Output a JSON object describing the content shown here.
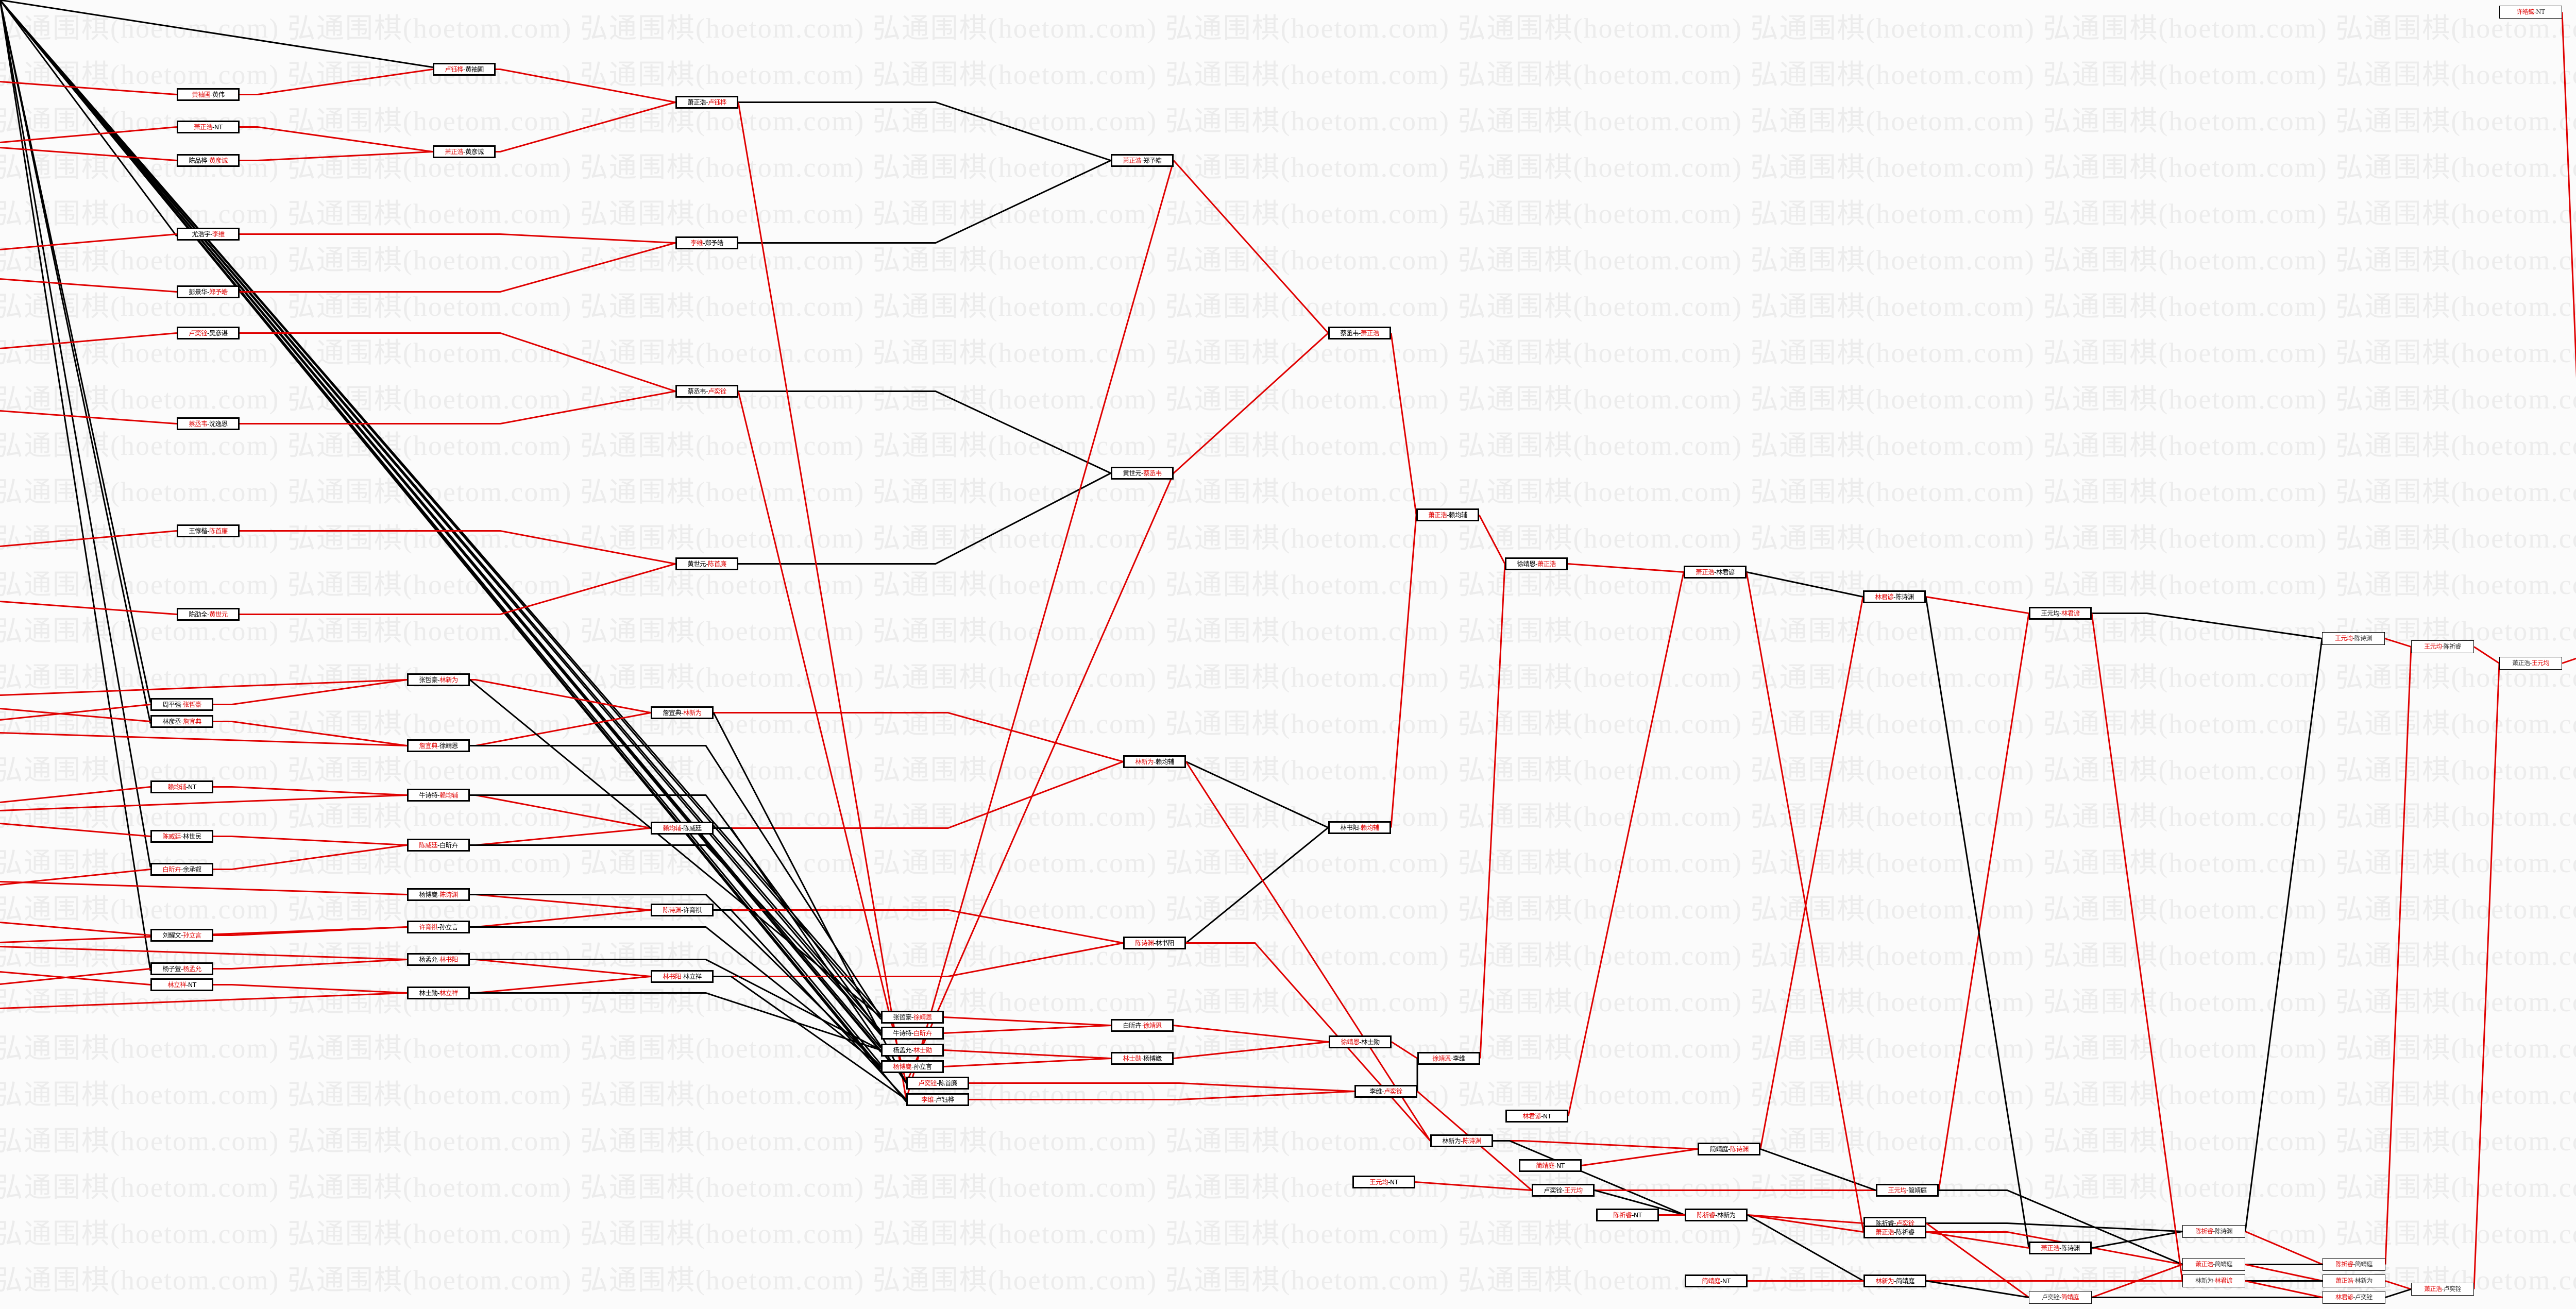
{
  "watermark": "弘通围棋(hoetom.com)",
  "colors": {
    "winner": "#e00000",
    "edge_red": "#e00000",
    "edge_black": "#000000",
    "background": "#fbfbfb"
  },
  "matches": [
    {
      "p1": "黄袖圃",
      "p2": "黄伟",
      "winner": 1
    },
    {
      "p1": "萧正浩",
      "p2": "NT",
      "winner": 1
    },
    {
      "p1": "陈品桦",
      "p2": "黄彦诚",
      "winner": 2
    },
    {
      "p1": "尤浩宇",
      "p2": "李维",
      "winner": 2
    },
    {
      "p1": "彭景华",
      "p2": "郑予皓",
      "winner": 2
    },
    {
      "p1": "卢奕铨",
      "p2": "吴彦谌",
      "winner": 1
    },
    {
      "p1": "蔡丞韦",
      "p2": "沈逸恩",
      "winner": 1
    },
    {
      "p1": "王惇楷",
      "p2": "陈首廉",
      "winner": 2
    },
    {
      "p1": "陈劭全",
      "p2": "黄世元",
      "winner": 2
    },
    {
      "p1": "卢钰桦",
      "p2": "黄袖圃",
      "winner": 1
    },
    {
      "p1": "萧正浩",
      "p2": "黄彦诚",
      "winner": 1
    },
    {
      "p1": "萧正浩",
      "p2": "卢钰桦",
      "winner": 2
    },
    {
      "p1": "李维",
      "p2": "郑予皓",
      "winner": 1
    },
    {
      "p1": "蔡丞韦",
      "p2": "卢奕铨",
      "winner": 2
    },
    {
      "p1": "黄世元",
      "p2": "陈首廉",
      "winner": 2
    },
    {
      "p1": "萧正浩",
      "p2": "郑予皓",
      "winner": 1
    },
    {
      "p1": "黄世元",
      "p2": "蔡丞韦",
      "winner": 2
    },
    {
      "p1": "蔡丞韦",
      "p2": "萧正浩",
      "winner": 2
    },
    {
      "p1": "萧正浩",
      "p2": "赖均辅",
      "winner": 1
    },
    {
      "p1": "徐靖恩",
      "p2": "萧正浩",
      "winner": 2
    },
    {
      "p1": "萧正浩",
      "p2": "林君谚",
      "winner": 1
    },
    {
      "p1": "林君谚",
      "p2": "陈诗渊",
      "winner": 1
    },
    {
      "p1": "王元均",
      "p2": "林君谚",
      "winner": 2
    },
    {
      "p1": "王元均",
      "p2": "陈诗渊",
      "winner": 1
    },
    {
      "p1": "王元均",
      "p2": "陈祈睿",
      "winner": 1
    },
    {
      "p1": "萧正浩",
      "p2": "王元均",
      "winner": 2
    },
    {
      "p1": "王元均",
      "p2": "许皓鋐",
      "winner": 2
    },
    {
      "p1": "许皓鋐",
      "p2": "NT",
      "winner": 1
    },
    {
      "p1": "周平强",
      "p2": "张哲豪",
      "winner": 2
    },
    {
      "p1": "林彦丞",
      "p2": "詹宜典",
      "winner": 2
    },
    {
      "p1": "赖均辅",
      "p2": "NT",
      "winner": 1
    },
    {
      "p1": "陈威廷",
      "p2": "林世民",
      "winner": 1
    },
    {
      "p1": "白昕卉",
      "p2": "余承叡",
      "winner": 1
    },
    {
      "p1": "刘耀文",
      "p2": "孙立言",
      "winner": 2
    },
    {
      "p1": "杨子萱",
      "p2": "杨孟允",
      "winner": 2
    },
    {
      "p1": "林立祥",
      "p2": "NT",
      "winner": 1
    },
    {
      "p1": "张哲豪",
      "p2": "林新为",
      "winner": 2
    },
    {
      "p1": "詹宜典",
      "p2": "徐靖恩",
      "winner": 1
    },
    {
      "p1": "牛诗特",
      "p2": "赖均辅",
      "winner": 2
    },
    {
      "p1": "陈威廷",
      "p2": "白昕卉",
      "winner": 1
    },
    {
      "p1": "杨博崴",
      "p2": "陈诗渊",
      "winner": 2
    },
    {
      "p1": "许育祺",
      "p2": "孙立言",
      "winner": 1
    },
    {
      "p1": "杨孟允",
      "p2": "林书阳",
      "winner": 2
    },
    {
      "p1": "林士勋",
      "p2": "林立祥",
      "winner": 2
    },
    {
      "p1": "詹宜典",
      "p2": "林新为",
      "winner": 2
    },
    {
      "p1": "赖均辅",
      "p2": "陈威廷",
      "winner": 1
    },
    {
      "p1": "陈诗渊",
      "p2": "许育祺",
      "winner": 1
    },
    {
      "p1": "林书阳",
      "p2": "林立祥",
      "winner": 1
    },
    {
      "p1": "林新为",
      "p2": "赖均辅",
      "winner": 1
    },
    {
      "p1": "陈诗渊",
      "p2": "林书阳",
      "winner": 1
    },
    {
      "p1": "林书阳",
      "p2": "赖均辅",
      "winner": 2
    },
    {
      "p1": "张哲豪",
      "p2": "徐靖恩",
      "winner": 2
    },
    {
      "p1": "牛诗特",
      "p2": "白昕卉",
      "winner": 2
    },
    {
      "p1": "杨孟允",
      "p2": "林士勋",
      "winner": 2
    },
    {
      "p1": "杨博崴",
      "p2": "孙立言",
      "winner": 1
    },
    {
      "p1": "卢奕铨",
      "p2": "陈首廉",
      "winner": 1
    },
    {
      "p1": "李维",
      "p2": "卢钰桦",
      "winner": 1
    },
    {
      "p1": "白昕卉",
      "p2": "徐靖恩",
      "winner": 2
    },
    {
      "p1": "林士勋",
      "p2": "杨博崴",
      "winner": 1
    },
    {
      "p1": "徐靖恩",
      "p2": "林士勋",
      "winner": 1
    },
    {
      "p1": "徐靖恩",
      "p2": "李维",
      "winner": 1
    },
    {
      "p1": "李维",
      "p2": "卢奕铨",
      "winner": 2
    },
    {
      "p1": "林君谚",
      "p2": "NT",
      "winner": 1
    },
    {
      "p1": "林新为",
      "p2": "陈诗渊",
      "winner": 2
    },
    {
      "p1": "简靖庭",
      "p2": "NT",
      "winner": 1
    },
    {
      "p1": "简靖庭",
      "p2": "陈诗渊",
      "winner": 2
    },
    {
      "p1": "王元均",
      "p2": "NT",
      "winner": 1
    },
    {
      "p1": "卢奕铨",
      "p2": "王元均",
      "winner": 2
    },
    {
      "p1": "陈祈睿",
      "p2": "NT",
      "winner": 1
    },
    {
      "p1": "陈祈睿",
      "p2": "林新为",
      "winner": 1
    },
    {
      "p1": "王元均",
      "p2": "简靖庭",
      "winner": 1
    },
    {
      "p1": "陈祈睿",
      "p2": "卢奕铨",
      "winner": 2
    },
    {
      "p1": "萧正浩",
      "p2": "陈祈睿",
      "winner": 1
    },
    {
      "p1": "简靖庭",
      "p2": "NT",
      "winner": 1
    },
    {
      "p1": "林新为",
      "p2": "简靖庭",
      "winner": 1
    },
    {
      "p1": "萧正浩",
      "p2": "陈诗渊",
      "winner": 1
    },
    {
      "p1": "卢奕铨",
      "p2": "简靖庭",
      "winner": 2
    },
    {
      "p1": "陈祈睿",
      "p2": "陈诗渊",
      "winner": 1
    },
    {
      "p1": "萧正浩",
      "p2": "简靖庭",
      "winner": 1
    },
    {
      "p1": "林新为",
      "p2": "林君谚",
      "winner": 2
    },
    {
      "p1": "陈祈睿",
      "p2": "简靖庭",
      "winner": 1
    },
    {
      "p1": "萧正浩",
      "p2": "林新为",
      "winner": 1
    },
    {
      "p1": "林君谚",
      "p2": "卢奕铨",
      "winner": 1
    },
    {
      "p1": "萧正浩",
      "p2": "卢奕铨",
      "winner": 1
    }
  ],
  "edges": [
    [
      0,
      9,
      "r"
    ],
    [
      1,
      10,
      "r"
    ],
    [
      2,
      10,
      "r"
    ],
    [
      3,
      12,
      "r"
    ],
    [
      4,
      12,
      "r"
    ],
    [
      5,
      13,
      "r"
    ],
    [
      6,
      13,
      "r"
    ],
    [
      7,
      14,
      "r"
    ],
    [
      8,
      14,
      "r"
    ],
    [
      9,
      11,
      "r"
    ],
    [
      10,
      11,
      "r"
    ],
    [
      11,
      15,
      "k"
    ],
    [
      12,
      15,
      "k"
    ],
    [
      13,
      16,
      "k"
    ],
    [
      14,
      16,
      "k"
    ],
    [
      15,
      17,
      "r"
    ],
    [
      16,
      17,
      "r"
    ],
    [
      17,
      18,
      "r"
    ],
    [
      11,
      56,
      "r"
    ],
    [
      15,
      56,
      "r"
    ],
    [
      13,
      55,
      "r"
    ],
    [
      16,
      55,
      "r"
    ],
    [
      18,
      19,
      "r"
    ],
    [
      48,
      50,
      "k"
    ],
    [
      49,
      50,
      "k"
    ],
    [
      50,
      18,
      "r"
    ],
    [
      36,
      44,
      "r"
    ],
    [
      37,
      44,
      "r"
    ],
    [
      38,
      45,
      "r"
    ],
    [
      39,
      45,
      "r"
    ],
    [
      40,
      46,
      "r"
    ],
    [
      41,
      46,
      "r"
    ],
    [
      42,
      47,
      "r"
    ],
    [
      43,
      47,
      "r"
    ],
    [
      44,
      48,
      "r"
    ],
    [
      45,
      48,
      "r"
    ],
    [
      46,
      49,
      "r"
    ],
    [
      47,
      49,
      "r"
    ],
    [
      28,
      36,
      "r"
    ],
    [
      29,
      37,
      "r"
    ],
    [
      30,
      38,
      "r"
    ],
    [
      31,
      39,
      "r"
    ],
    [
      32,
      39,
      "r"
    ],
    [
      33,
      41,
      "r"
    ],
    [
      34,
      42,
      "r"
    ],
    [
      35,
      43,
      "r"
    ],
    [
      36,
      51,
      "k"
    ],
    [
      37,
      51,
      "k"
    ],
    [
      38,
      52,
      "k"
    ],
    [
      39,
      52,
      "k"
    ],
    [
      40,
      54,
      "k"
    ],
    [
      41,
      54,
      "k"
    ],
    [
      42,
      53,
      "k"
    ],
    [
      43,
      53,
      "k"
    ],
    [
      44,
      55,
      "k"
    ],
    [
      45,
      55,
      "k"
    ],
    [
      46,
      56,
      "k"
    ],
    [
      47,
      56,
      "k"
    ],
    [
      51,
      57,
      "r"
    ],
    [
      52,
      57,
      "r"
    ],
    [
      53,
      58,
      "r"
    ],
    [
      54,
      58,
      "r"
    ],
    [
      57,
      59,
      "r"
    ],
    [
      58,
      59,
      "r"
    ],
    [
      55,
      61,
      "r"
    ],
    [
      56,
      61,
      "r"
    ],
    [
      59,
      60,
      "r"
    ],
    [
      61,
      60,
      "k"
    ],
    [
      60,
      19,
      "r"
    ],
    [
      48,
      63,
      "r"
    ],
    [
      49,
      63,
      "r"
    ],
    [
      19,
      20,
      "r"
    ],
    [
      62,
      20,
      "r"
    ],
    [
      20,
      21,
      "k"
    ],
    [
      65,
      21,
      "r"
    ],
    [
      21,
      22,
      "r"
    ],
    [
      70,
      22,
      "r"
    ],
    [
      22,
      23,
      "k"
    ],
    [
      23,
      24,
      "r"
    ],
    [
      80,
      24,
      "r"
    ],
    [
      24,
      25,
      "r"
    ],
    [
      83,
      25,
      "r"
    ],
    [
      25,
      26,
      "r"
    ],
    [
      27,
      26,
      "r"
    ],
    [
      63,
      65,
      "r"
    ],
    [
      64,
      65,
      "r"
    ],
    [
      63,
      69,
      "k"
    ],
    [
      66,
      67,
      "r"
    ],
    [
      61,
      67,
      "r"
    ],
    [
      67,
      70,
      "r"
    ],
    [
      67,
      69,
      "k"
    ],
    [
      68,
      69,
      "r"
    ],
    [
      65,
      70,
      "k"
    ],
    [
      69,
      71,
      "r"
    ],
    [
      69,
      72,
      "r"
    ],
    [
      69,
      74,
      "k"
    ],
    [
      73,
      74,
      "r"
    ],
    [
      20,
      72,
      "r"
    ],
    [
      21,
      75,
      "k"
    ],
    [
      71,
      77,
      "k"
    ],
    [
      71,
      76,
      "r"
    ],
    [
      72,
      75,
      "r"
    ],
    [
      72,
      78,
      "r"
    ],
    [
      70,
      78,
      "k"
    ],
    [
      74,
      79,
      "r"
    ],
    [
      74,
      76,
      "k"
    ],
    [
      75,
      77,
      "k"
    ],
    [
      76,
      78,
      "r"
    ],
    [
      76,
      82,
      "k"
    ],
    [
      77,
      80,
      "r"
    ],
    [
      77,
      23,
      "k"
    ],
    [
      78,
      80,
      "k"
    ],
    [
      78,
      81,
      "r"
    ],
    [
      79,
      81,
      "k"
    ],
    [
      79,
      82,
      "r"
    ],
    [
      81,
      83,
      "r"
    ],
    [
      82,
      83,
      "k"
    ],
    [
      22,
      79,
      "r"
    ]
  ]
}
